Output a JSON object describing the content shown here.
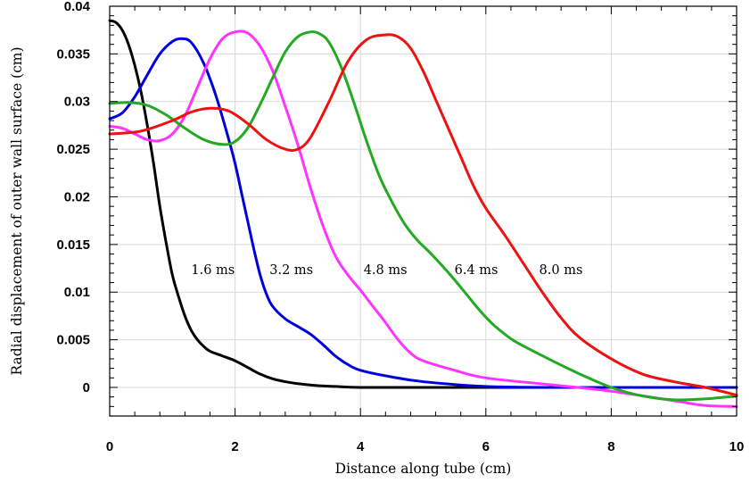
{
  "chart_data": {
    "type": "line",
    "xlabel": "Distance along tube (cm)",
    "ylabel": "Radial displacement of outer wall surface (cm)",
    "xlim": [
      0,
      10
    ],
    "ylim": [
      -0.003,
      0.04
    ],
    "x_ticks": [
      0,
      2,
      4,
      6,
      8,
      10
    ],
    "x_tick_labels": [
      "0",
      "2",
      "4",
      "6",
      "8",
      "10"
    ],
    "y_ticks": [
      0,
      0.005,
      0.01,
      0.015,
      0.02,
      0.025,
      0.03,
      0.035,
      0.04
    ],
    "y_tick_labels": [
      "0",
      "0.005",
      "0.01",
      "0.015",
      "0.02",
      "0.025",
      "0.03",
      "0.035",
      "0.04"
    ],
    "grid": true,
    "colors": {
      "black": "#000000",
      "blue": "#0000dd",
      "magenta": "#ff33ff",
      "green": "#22aa22",
      "red": "#ee1111"
    },
    "series": [
      {
        "color": "#000000",
        "x": [
          0,
          0.1,
          0.2,
          0.3,
          0.4,
          0.5,
          0.6,
          0.7,
          0.8,
          0.9,
          1.0,
          1.1,
          1.2,
          1.3,
          1.4,
          1.5,
          1.6,
          1.8,
          2.0,
          2.2,
          2.4,
          2.6,
          2.8,
          3.0,
          3.3,
          3.6,
          4.0,
          5.0,
          6.0,
          7.0,
          8.0,
          9.0,
          10.0
        ],
        "y": [
          0.0385,
          0.0383,
          0.0375,
          0.036,
          0.0338,
          0.031,
          0.0275,
          0.0235,
          0.019,
          0.0152,
          0.0118,
          0.0095,
          0.0075,
          0.006,
          0.005,
          0.0043,
          0.0038,
          0.0033,
          0.0028,
          0.0021,
          0.0014,
          0.0009,
          0.0006,
          0.0004,
          0.0002,
          0.0001,
          0.0,
          0.0,
          0.0,
          0.0,
          0.0,
          0.0,
          0.0
        ]
      },
      {
        "color": "#0000dd",
        "x": [
          0,
          0.2,
          0.4,
          0.6,
          0.8,
          1.0,
          1.15,
          1.3,
          1.5,
          1.7,
          1.9,
          2.0,
          2.1,
          2.2,
          2.3,
          2.4,
          2.5,
          2.6,
          2.8,
          3.0,
          3.2,
          3.4,
          3.6,
          3.8,
          4.0,
          4.5,
          5.0,
          6.0,
          7.0,
          8.0,
          9.0,
          10.0
        ],
        "y": [
          0.0282,
          0.0288,
          0.0305,
          0.0328,
          0.035,
          0.0363,
          0.0366,
          0.0362,
          0.034,
          0.0305,
          0.026,
          0.0235,
          0.0205,
          0.0175,
          0.0145,
          0.0118,
          0.0098,
          0.0085,
          0.0072,
          0.0064,
          0.0056,
          0.0045,
          0.0033,
          0.0024,
          0.0018,
          0.0011,
          0.0006,
          0.0001,
          0.0,
          0.0,
          0.0,
          0.0
        ]
      },
      {
        "color": "#ff33ff",
        "x": [
          0,
          0.2,
          0.4,
          0.6,
          0.8,
          1.0,
          1.2,
          1.4,
          1.6,
          1.8,
          2.0,
          2.2,
          2.4,
          2.6,
          2.8,
          3.0,
          3.2,
          3.4,
          3.6,
          3.8,
          4.0,
          4.2,
          4.4,
          4.6,
          4.8,
          5.0,
          5.5,
          6.0,
          7.0,
          8.0,
          9.0,
          9.5,
          10.0
        ],
        "y": [
          0.0274,
          0.0272,
          0.0266,
          0.026,
          0.0259,
          0.0266,
          0.0285,
          0.0315,
          0.0345,
          0.0366,
          0.0373,
          0.0372,
          0.0358,
          0.0332,
          0.0295,
          0.0255,
          0.021,
          0.017,
          0.0138,
          0.0118,
          0.0102,
          0.0085,
          0.0068,
          0.005,
          0.0036,
          0.0028,
          0.0018,
          0.001,
          0.0003,
          -0.0004,
          -0.0014,
          -0.0019,
          -0.002
        ]
      },
      {
        "color": "#22aa22",
        "x": [
          0,
          0.3,
          0.6,
          0.9,
          1.2,
          1.5,
          1.8,
          2.0,
          2.2,
          2.4,
          2.6,
          2.8,
          3.0,
          3.2,
          3.35,
          3.5,
          3.7,
          3.9,
          4.1,
          4.3,
          4.5,
          4.7,
          4.9,
          5.1,
          5.3,
          5.5,
          5.7,
          5.9,
          6.1,
          6.3,
          6.5,
          7.0,
          7.5,
          8.0,
          8.5,
          9.0,
          9.5,
          10.0
        ],
        "y": [
          0.0298,
          0.0299,
          0.0296,
          0.0286,
          0.0272,
          0.026,
          0.0255,
          0.0258,
          0.0272,
          0.0297,
          0.0325,
          0.0352,
          0.0368,
          0.0373,
          0.0371,
          0.0362,
          0.0335,
          0.0298,
          0.0258,
          0.0222,
          0.0195,
          0.0172,
          0.0155,
          0.0142,
          0.0128,
          0.0113,
          0.0097,
          0.0081,
          0.0067,
          0.0056,
          0.0047,
          0.003,
          0.0014,
          0.0,
          -0.0009,
          -0.0013,
          -0.0012,
          -0.0009
        ]
      },
      {
        "color": "#ee1111",
        "x": [
          0,
          0.5,
          1.0,
          1.3,
          1.6,
          1.9,
          2.2,
          2.5,
          2.8,
          3.0,
          3.2,
          3.5,
          3.8,
          4.1,
          4.4,
          4.6,
          4.8,
          5.0,
          5.2,
          5.4,
          5.6,
          5.8,
          6.0,
          6.3,
          6.6,
          6.9,
          7.2,
          7.5,
          8.0,
          8.5,
          9.0,
          9.5,
          10.0
        ],
        "y": [
          0.0266,
          0.0269,
          0.028,
          0.0289,
          0.0293,
          0.029,
          0.0277,
          0.026,
          0.025,
          0.025,
          0.0262,
          0.03,
          0.0342,
          0.0365,
          0.037,
          0.0368,
          0.0356,
          0.0332,
          0.0302,
          0.0272,
          0.0242,
          0.0212,
          0.0188,
          0.016,
          0.013,
          0.01,
          0.0073,
          0.0052,
          0.003,
          0.0014,
          0.0006,
          0.0,
          -0.0008
        ]
      }
    ],
    "annotations": [
      {
        "text": "1.6 ms",
        "x": 1.3,
        "y": 0.0119
      },
      {
        "text": "3.2 ms",
        "x": 2.55,
        "y": 0.0119
      },
      {
        "text": "4.8 ms",
        "x": 4.05,
        "y": 0.0119
      },
      {
        "text": "6.4 ms",
        "x": 5.5,
        "y": 0.0119
      },
      {
        "text": "8.0 ms",
        "x": 6.85,
        "y": 0.0119
      }
    ]
  }
}
